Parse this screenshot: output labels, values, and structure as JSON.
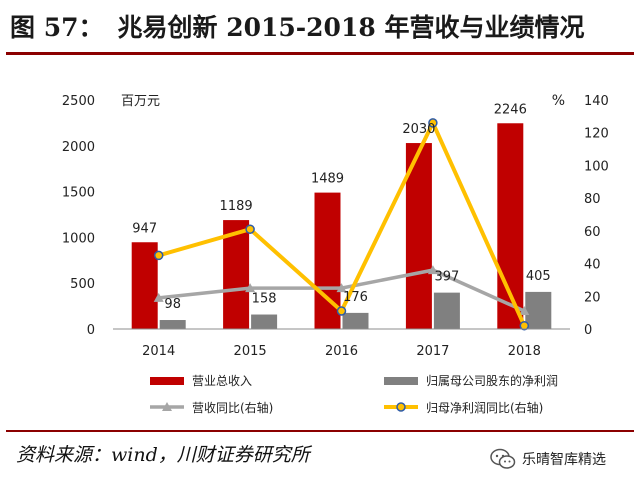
{
  "header": {
    "figure_number": "图 57：",
    "title": "兆易创新 2015-2018 年营收与业绩情况"
  },
  "footer": {
    "source": "资料来源：wind，川财证券研究所",
    "brand": "乐晴智库精选"
  },
  "colors": {
    "revenue_bar": "#c00000",
    "profit_bar": "#808080",
    "revenue_yoy_line": "#a6a6a6",
    "profit_yoy_line": "#ffc000",
    "profit_yoy_marker_edge": "#2e5ba8",
    "title_rule": "#8b0000"
  },
  "chart_data": {
    "type": "bar",
    "categories": [
      "2014",
      "2015",
      "2016",
      "2017",
      "2018"
    ],
    "left_axis": {
      "unit": "百万元",
      "ylim": [
        0,
        2500
      ],
      "ticks": [
        "0",
        "500",
        "1000",
        "1500",
        "2000",
        "2500"
      ]
    },
    "right_axis": {
      "unit": "%",
      "ylim": [
        0,
        140
      ],
      "ticks": [
        "0",
        "20",
        "40",
        "60",
        "80",
        "100",
        "120",
        "140"
      ]
    },
    "series": [
      {
        "name": "营业总收入",
        "kind": "bar",
        "axis": "left",
        "values": [
          947,
          1189,
          1489,
          2030,
          2246
        ],
        "labels": [
          "947",
          "1189",
          "1489",
          "2030",
          "2246"
        ]
      },
      {
        "name": "归属母公司股东的净利润",
        "kind": "bar",
        "axis": "left",
        "values": [
          98,
          158,
          176,
          397,
          405
        ],
        "labels": [
          "98",
          "158",
          "176",
          "397",
          "405"
        ]
      },
      {
        "name": "营收同比(右轴)",
        "kind": "line",
        "axis": "right",
        "values": [
          19,
          25,
          25,
          36,
          11
        ]
      },
      {
        "name": "归母净利润同比(右轴)",
        "kind": "line",
        "axis": "right",
        "values": [
          45,
          61,
          11,
          126,
          2
        ]
      }
    ]
  }
}
